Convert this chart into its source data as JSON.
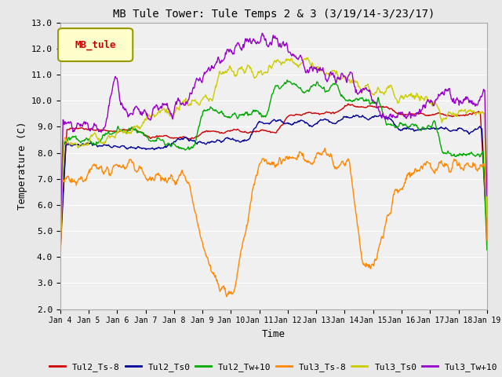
{
  "title": "MB Tule Tower: Tule Temps 2 & 3 (3/19/14-3/23/17)",
  "xlabel": "Time",
  "ylabel": "Temperature (C)",
  "ylim": [
    2.0,
    13.0
  ],
  "yticks": [
    2.0,
    3.0,
    4.0,
    5.0,
    6.0,
    7.0,
    8.0,
    9.0,
    10.0,
    11.0,
    12.0,
    13.0
  ],
  "xtick_labels": [
    "Jan 4",
    "Jan 5",
    "Jan 6",
    "Jan 7",
    "Jan 8",
    "Jan 9",
    "Jan 10",
    "Jan 11",
    "Jan 12",
    "Jan 13",
    "Jan 14",
    "Jan 15",
    "Jan 16",
    "Jan 17",
    "Jan 18",
    "Jan 19"
  ],
  "legend_label": "MB_tule",
  "series": {
    "Tul2_Ts-8": {
      "color": "#cc0000"
    },
    "Tul2_Ts0": {
      "color": "#000099"
    },
    "Tul2_Tw+10": {
      "color": "#00aa00"
    },
    "Tul3_Ts-8": {
      "color": "#ff8800"
    },
    "Tul3_Ts0": {
      "color": "#cccc00"
    },
    "Tul3_Tw+10": {
      "color": "#9900cc"
    }
  },
  "bg_color": "#e8e8e8",
  "plot_bg_color": "#f0f0f0",
  "grid_color": "#ffffff"
}
